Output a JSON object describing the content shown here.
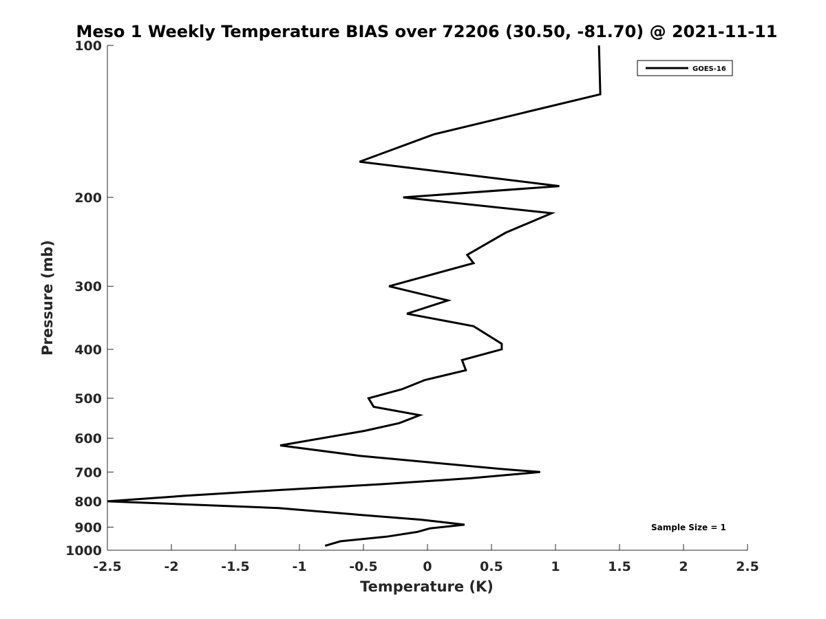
{
  "chart_data": {
    "type": "line",
    "title": "Meso 1 Weekly Temperature BIAS over 72206 (30.50, -81.70) @ 2021-11-11",
    "xlabel": "Temperature (K)",
    "ylabel": "Pressure (mb)",
    "xlim": [
      -2.5,
      2.5
    ],
    "ylim": [
      1000,
      100
    ],
    "y_scale": "log",
    "y_reversed": true,
    "x_ticks": [
      -2.5,
      -2,
      -1.5,
      -1,
      -0.5,
      0,
      0.5,
      1,
      1.5,
      2,
      2.5
    ],
    "x_tick_labels": [
      "-2.5",
      "-2",
      "-1.5",
      "-1",
      "-0.5",
      "0",
      "0.5",
      "1",
      "1.5",
      "2",
      "2.5"
    ],
    "y_ticks": [
      100,
      200,
      300,
      400,
      500,
      600,
      700,
      800,
      900,
      1000
    ],
    "y_tick_labels": [
      "100",
      "200",
      "300",
      "400",
      "500",
      "600",
      "700",
      "800",
      "900",
      "1000"
    ],
    "grid": false,
    "legend_position": "top-right",
    "line_color": "#000000",
    "series": [
      {
        "name": "GOES-16",
        "x": [
          1.34,
          1.35,
          0.05,
          -0.53,
          1.03,
          -0.19,
          0.97,
          0.61,
          0.31,
          0.36,
          -0.3,
          0.16,
          -0.16,
          0.36,
          0.58,
          0.58,
          0.27,
          0.3,
          -0.02,
          -0.2,
          -0.46,
          -0.42,
          -0.06,
          -0.22,
          -0.49,
          -1.15,
          -0.53,
          0.02,
          0.57,
          0.88,
          0.34,
          -0.36,
          -1.16,
          -1.89,
          -2.5,
          -1.16,
          -0.55,
          -0.05,
          0.29,
          0.02,
          -0.08,
          -0.32,
          -0.68,
          -0.8
        ],
        "y": [
          100,
          125,
          150,
          170,
          190,
          200,
          215,
          235,
          260,
          270,
          300,
          320,
          340,
          360,
          390,
          400,
          420,
          440,
          460,
          480,
          500,
          520,
          540,
          560,
          580,
          620,
          650,
          670,
          690,
          700,
          720,
          740,
          760,
          780,
          800,
          825,
          850,
          870,
          890,
          905,
          920,
          940,
          960,
          980
        ]
      }
    ],
    "annotation": "Sample Size = 1"
  }
}
